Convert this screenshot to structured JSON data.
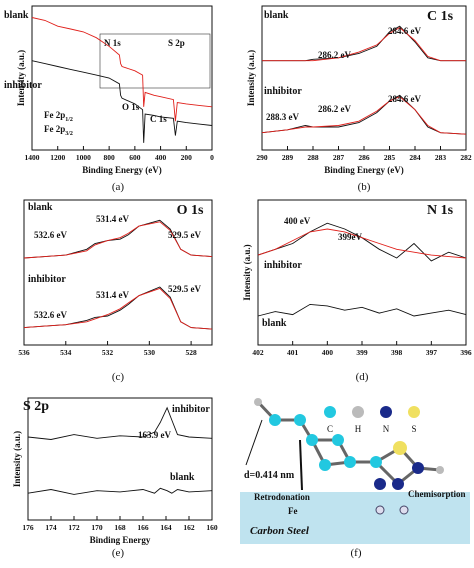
{
  "chart_data": [
    {
      "type": "line",
      "xlabel": "Binding Energy (eV)",
      "ylabel": "Intensity (a.u.)",
      "caption": "(a)",
      "xlim": [
        1400,
        0
      ],
      "xticks": [
        1400,
        1200,
        1000,
        800,
        600,
        400,
        200,
        0
      ],
      "ylim": [
        0,
        100
      ],
      "x": [
        1400,
        1300,
        1200,
        1100,
        1000,
        900,
        800,
        720,
        711,
        700,
        600,
        540,
        531,
        520,
        450,
        400,
        300,
        285,
        270,
        200,
        100,
        0
      ],
      "series": [
        {
          "name": "blank",
          "color": "#e0201b",
          "values": [
            92,
            90,
            86,
            84,
            82,
            78,
            72,
            66,
            60,
            58,
            55,
            52,
            30,
            40,
            38,
            37,
            35,
            20,
            33,
            32,
            31,
            30
          ]
        },
        {
          "name": "inhibitor",
          "color": "#111111",
          "values": [
            62,
            60,
            58,
            56,
            54,
            52,
            50,
            46,
            38,
            36,
            32,
            28,
            5,
            25,
            24,
            23,
            22,
            10,
            20,
            19,
            18,
            17
          ]
        }
      ],
      "annotations": [
        {
          "text": "O 1s"
        },
        {
          "text": "C 1s"
        },
        {
          "text": "N 1s"
        },
        {
          "text": "S 2p"
        },
        {
          "text": "Fe 2p",
          "sub": "1/2"
        },
        {
          "text": "Fe 2p",
          "sub": "3/2"
        }
      ]
    },
    {
      "type": "line",
      "title": "C 1s",
      "xlabel": "Binding Energy (eV)",
      "ylabel": "Intensity (a.u.)",
      "caption": "(b)",
      "xlim": [
        290,
        282
      ],
      "xticks": [
        290,
        289,
        288,
        287,
        286,
        285,
        284,
        283,
        282
      ],
      "ylim": [
        0,
        100
      ],
      "x": [
        290,
        289,
        288.3,
        288,
        287,
        286.2,
        285.5,
        285,
        284.6,
        284,
        283.5,
        283,
        282
      ],
      "series": [
        {
          "name": "blank",
          "color": "#111111",
          "values": [
            62,
            62,
            62,
            63,
            64,
            67,
            72,
            82,
            86,
            75,
            64,
            62,
            62
          ]
        },
        {
          "color": "#e0201b",
          "values": [
            62,
            62,
            62,
            62,
            64,
            68,
            73,
            81,
            85,
            76,
            65,
            62,
            62
          ]
        },
        {
          "name": "inhibitor",
          "color": "#111111",
          "values": [
            12,
            14,
            17,
            16,
            16,
            19,
            26,
            34,
            38,
            28,
            16,
            12,
            11
          ]
        },
        {
          "color": "#e0201b",
          "values": [
            12,
            14,
            16,
            16,
            17,
            20,
            27,
            34,
            37,
            28,
            17,
            12,
            11
          ]
        }
      ],
      "annotations": [
        {
          "text": "286.2 eV"
        },
        {
          "text": "284.6 eV"
        },
        {
          "text": "288.3 eV"
        },
        {
          "text": "286.2 eV"
        },
        {
          "text": "284.6 eV"
        }
      ]
    },
    {
      "type": "line",
      "title": "O 1s",
      "caption": "(c)",
      "xlim": [
        536,
        527
      ],
      "xticks": [
        536,
        534,
        532,
        530,
        528
      ],
      "ylim": [
        0,
        100
      ],
      "x": [
        536,
        535,
        534,
        533,
        532.6,
        532,
        531.4,
        531,
        530.5,
        529.5,
        529,
        528.5,
        528,
        527
      ],
      "series": [
        {
          "name": "blank",
          "color": "#111111",
          "values": [
            60,
            61,
            62,
            66,
            70,
            72,
            73,
            76,
            82,
            86,
            80,
            66,
            62,
            61
          ]
        },
        {
          "color": "#e0201b",
          "values": [
            60,
            61,
            62,
            65,
            69,
            72,
            74,
            77,
            82,
            85,
            79,
            66,
            62,
            61
          ]
        },
        {
          "name": "inhibitor",
          "color": "#111111",
          "values": [
            12,
            13,
            14,
            17,
            19,
            20,
            24,
            28,
            34,
            40,
            33,
            16,
            12,
            11
          ]
        },
        {
          "color": "#e0201b",
          "values": [
            12,
            13,
            14,
            16,
            18,
            21,
            25,
            29,
            34,
            39,
            32,
            16,
            12,
            11
          ]
        }
      ],
      "annotations": [
        {
          "text": "532.6 eV"
        },
        {
          "text": "531.4 eV"
        },
        {
          "text": "529.5 eV"
        },
        {
          "text": "532.6 eV"
        },
        {
          "text": "531.4 eV"
        },
        {
          "text": "529.5 eV"
        }
      ]
    },
    {
      "type": "line",
      "title": "N 1s",
      "ylabel": "Intensity (a.u.)",
      "caption": "(d)",
      "xlim": [
        402,
        396
      ],
      "xticks": [
        402,
        401,
        400,
        399,
        398,
        397,
        396
      ],
      "ylim": [
        0,
        100
      ],
      "x": [
        402,
        401.5,
        401,
        400.5,
        400,
        399.5,
        399,
        398.5,
        398,
        397.5,
        397,
        396.5,
        396
      ],
      "series": [
        {
          "name": "inhibitor",
          "color": "#111111",
          "values": [
            62,
            66,
            70,
            78,
            84,
            80,
            74,
            66,
            60,
            70,
            58,
            64,
            60
          ]
        },
        {
          "color": "#e0201b",
          "values": [
            62,
            66,
            72,
            78,
            80,
            78,
            74,
            70,
            66,
            64,
            62,
            61,
            60
          ]
        },
        {
          "name": "blank",
          "color": "#111111",
          "values": [
            20,
            23,
            21,
            28,
            27,
            24,
            26,
            22,
            25,
            20,
            22,
            24,
            21
          ]
        }
      ],
      "annotations": [
        {
          "text": "400 eV"
        },
        {
          "text": "399eV"
        }
      ]
    },
    {
      "type": "line",
      "title": "S 2p",
      "xlabel": "Binding Energy",
      "ylabel": "Intensity (a.u.)",
      "caption": "(e)",
      "xlim": [
        176,
        160
      ],
      "xticks": [
        176,
        174,
        172,
        170,
        168,
        166,
        164,
        162,
        160
      ],
      "ylim": [
        0,
        100
      ],
      "x": [
        176,
        174,
        172,
        170,
        168,
        166,
        165,
        164.5,
        163.9,
        163.5,
        163,
        162,
        160
      ],
      "series": [
        {
          "name": "inhibitor",
          "color": "#111111",
          "values": [
            68,
            66,
            70,
            67,
            69,
            68,
            72,
            80,
            92,
            82,
            70,
            68,
            67
          ]
        },
        {
          "name": "blank",
          "color": "#111111",
          "values": [
            22,
            25,
            21,
            24,
            23,
            25,
            22,
            26,
            24,
            22,
            25,
            23,
            24
          ]
        }
      ],
      "annotations": [
        {
          "text": "163.9 eV"
        }
      ]
    }
  ],
  "diagram": {
    "legend": [
      "C",
      "H",
      "N",
      "S"
    ],
    "distance": "d=0.414 nm",
    "labels": [
      "Retrodonation",
      "Chemisorption"
    ],
    "atom": "Fe",
    "substrate": "Carbon Steel",
    "caption": "(f)"
  }
}
